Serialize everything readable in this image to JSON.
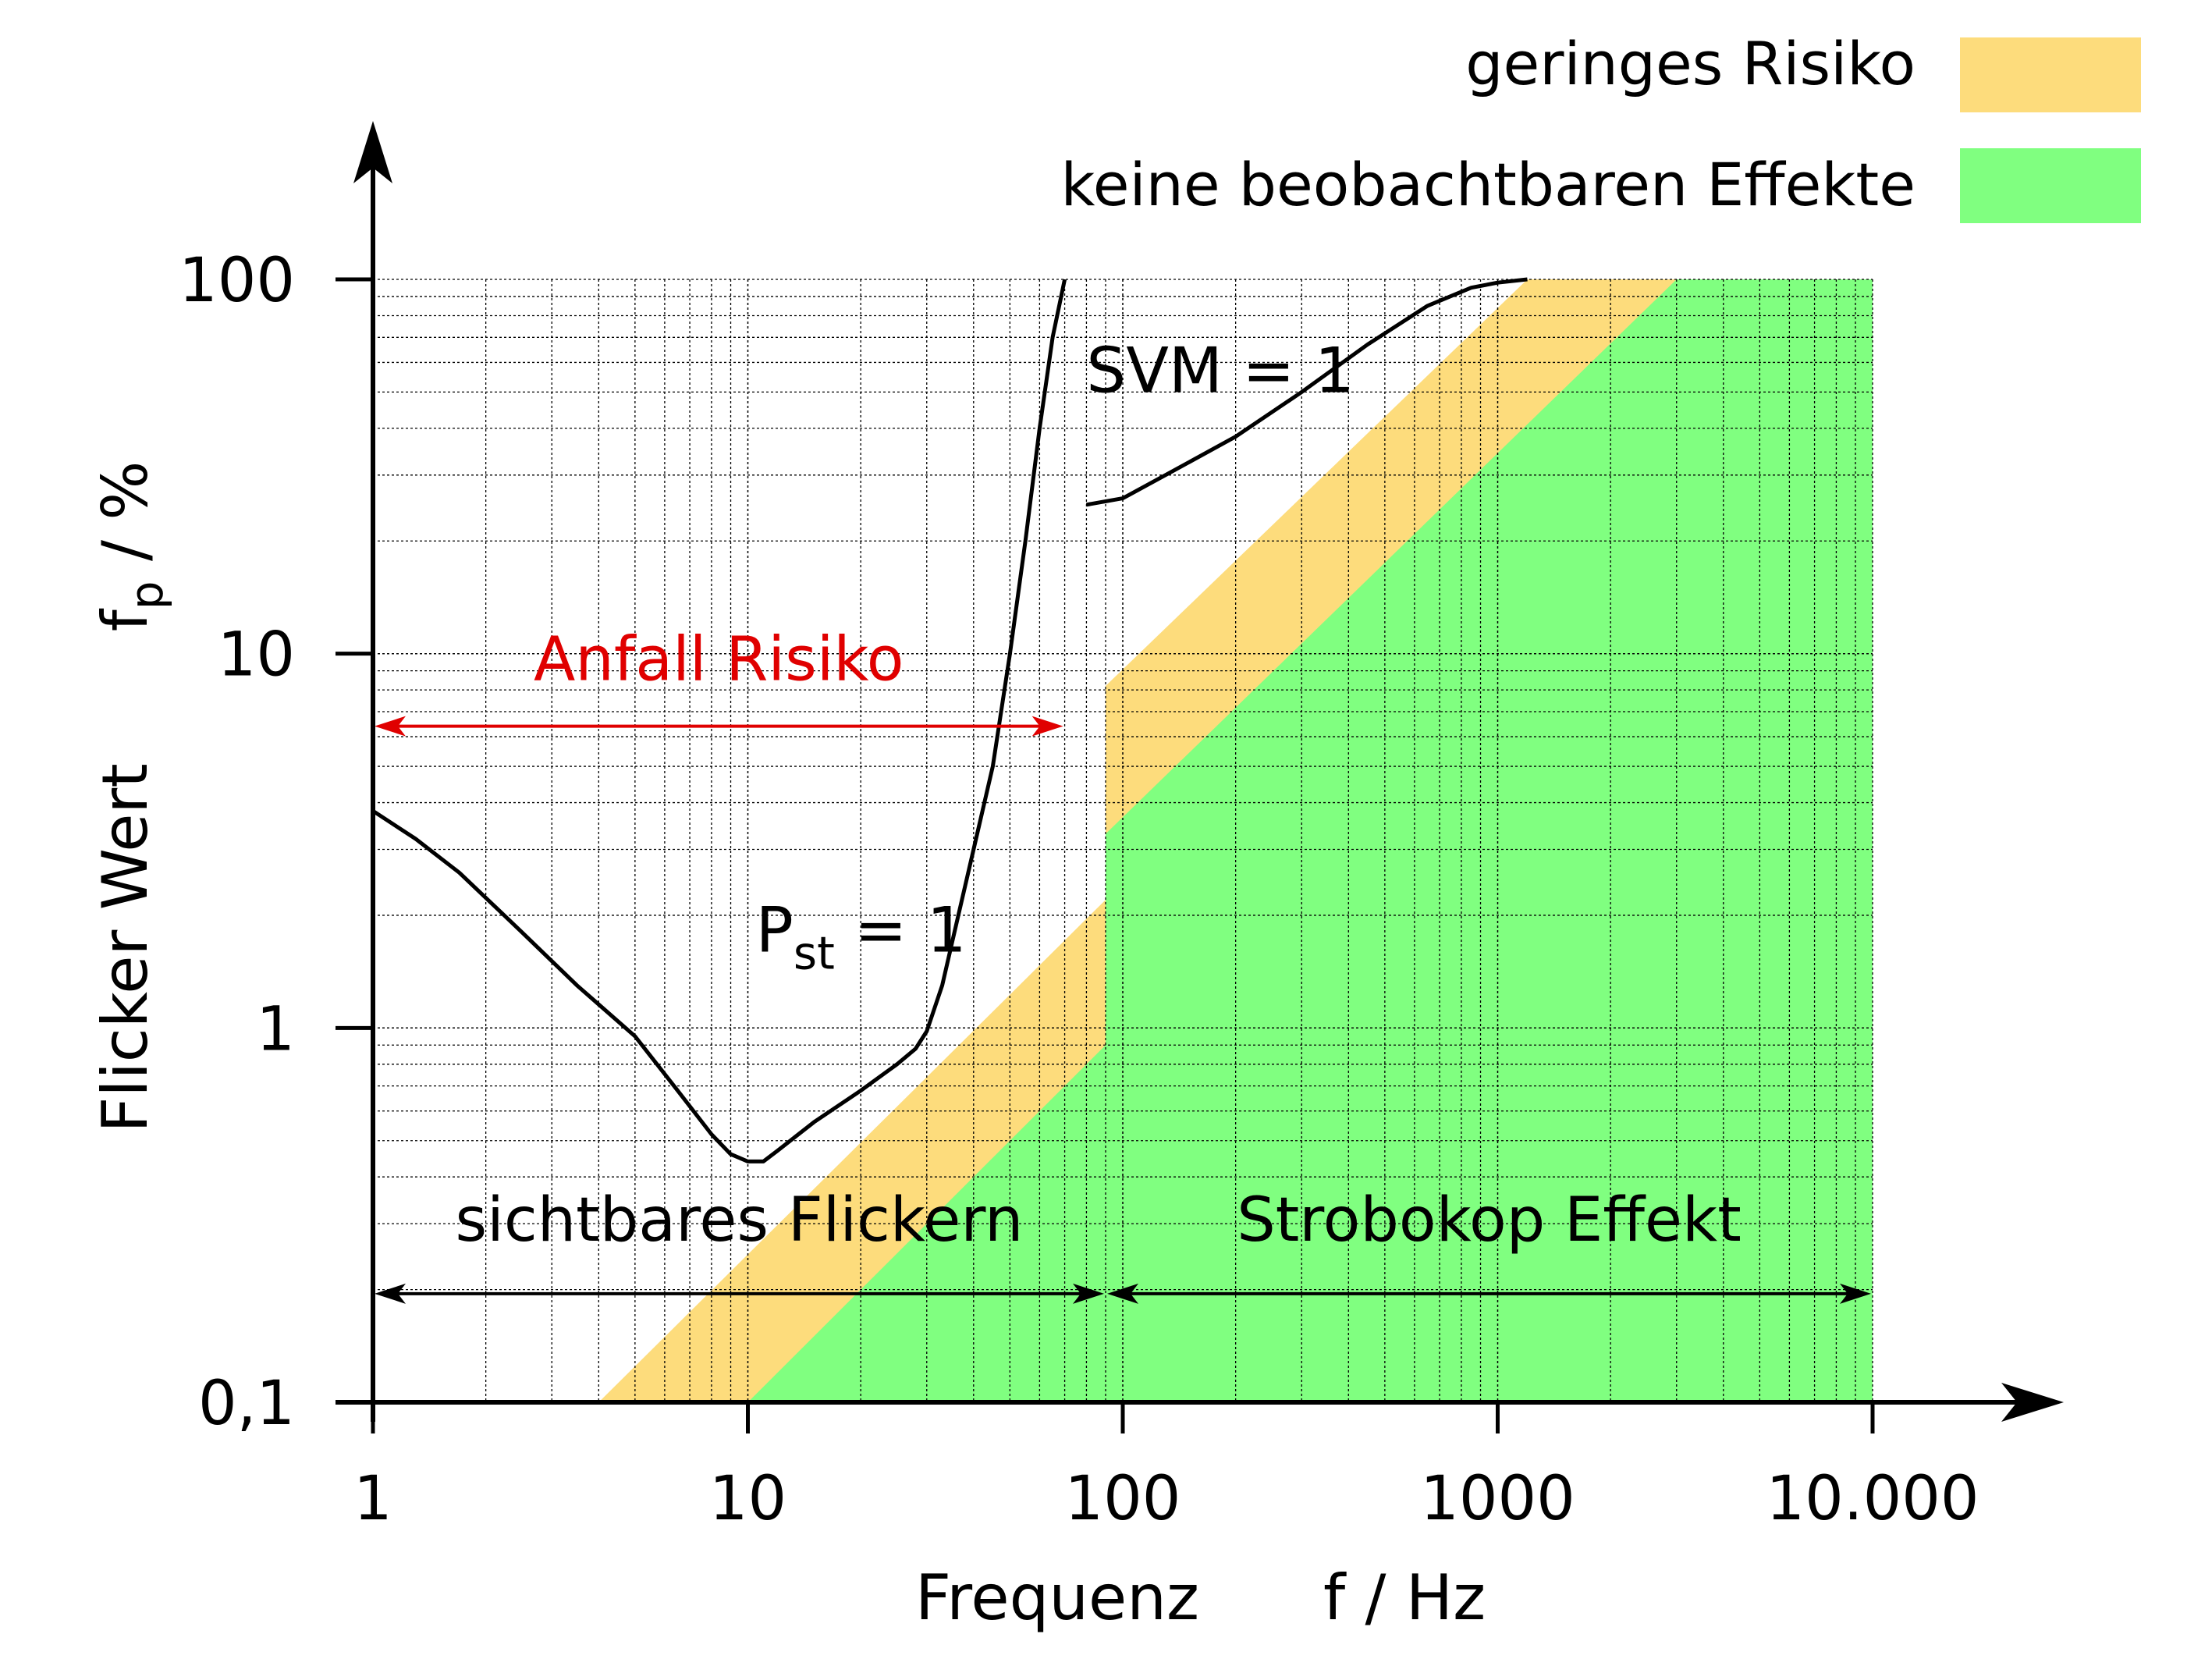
{
  "legend": {
    "items": [
      {
        "label": "geringes Risiko",
        "color": "#fddc7c"
      },
      {
        "label": "keine beobachtbaren Effekte",
        "color": "#80ff80"
      }
    ]
  },
  "chart_data": {
    "type": "area",
    "x_scale": "log",
    "y_scale": "log",
    "xlim": [
      1,
      10000
    ],
    "ylim": [
      0.1,
      100
    ],
    "x_ticks": [
      "1",
      "10",
      "100",
      "1000",
      "10.000"
    ],
    "y_ticks": [
      "0,1",
      "1",
      "10",
      "100"
    ],
    "x_tick_values": [
      1,
      10,
      100,
      1000,
      10000
    ],
    "y_tick_values": [
      0.1,
      1,
      10,
      100
    ],
    "xlabel": {
      "left": "Frequenz",
      "right": "f / Hz"
    },
    "ylabel": {
      "left": "Flicker Wert",
      "right_main": "f",
      "right_sub": "p",
      "right_rest": " / %"
    },
    "grid": true,
    "regions": [
      {
        "name": "geringes Risiko",
        "color": "#fddc7c",
        "polygon": [
          [
            4,
            0.1
          ],
          [
            90,
            2.2
          ],
          [
            90,
            8.2
          ],
          [
            1200,
            100
          ],
          [
            10000,
            100
          ],
          [
            10000,
            0.1
          ]
        ]
      },
      {
        "name": "keine beobachtbaren Effekte",
        "color": "#80ff80",
        "polygon": [
          [
            10,
            0.1
          ],
          [
            90,
            0.9
          ],
          [
            90,
            3.3
          ],
          [
            3000,
            100
          ],
          [
            10000,
            100
          ],
          [
            10000,
            0.1
          ]
        ]
      }
    ],
    "series": [
      {
        "label_main": "P",
        "label_sub": "st",
        "label_rest": " = 1",
        "label_at": [
          10.5,
          1.6
        ],
        "color": "#000000",
        "x": [
          1,
          1.3,
          1.7,
          2.5,
          3.5,
          5,
          6.5,
          8,
          9,
          10,
          11,
          12,
          15,
          20,
          25,
          28,
          30,
          33,
          36,
          40,
          45,
          50,
          55,
          60,
          65,
          70
        ],
        "y": [
          3.8,
          3.2,
          2.6,
          1.8,
          1.3,
          0.95,
          0.68,
          0.52,
          0.46,
          0.44,
          0.44,
          0.47,
          0.56,
          0.68,
          0.8,
          0.88,
          0.98,
          1.3,
          1.9,
          3.0,
          5.0,
          10,
          20,
          40,
          70,
          100
        ]
      },
      {
        "label_main": "SVM = 1",
        "label_sub": "",
        "label_rest": "",
        "label_at": [
          80,
          50
        ],
        "color": "#000000",
        "x": [
          80,
          100,
          130,
          200,
          300,
          450,
          650,
          850,
          1000,
          1200
        ],
        "y": [
          25,
          26,
          30,
          38,
          50,
          67,
          85,
          95,
          98,
          100
        ]
      }
    ],
    "annotations": [
      {
        "text": "Anfall Risiko",
        "color": "#e00000",
        "x_range": [
          1,
          70
        ],
        "y": 6.4,
        "label_y": 8.5
      },
      {
        "text": "sichtbares Flickern",
        "color": "#000000",
        "x_range": [
          1,
          90
        ],
        "y": 0.195,
        "label_y": 0.27
      },
      {
        "text": "Strobokop Effekt",
        "color": "#000000",
        "x_range": [
          90,
          10000
        ],
        "y": 0.195,
        "label_y": 0.27
      }
    ]
  }
}
